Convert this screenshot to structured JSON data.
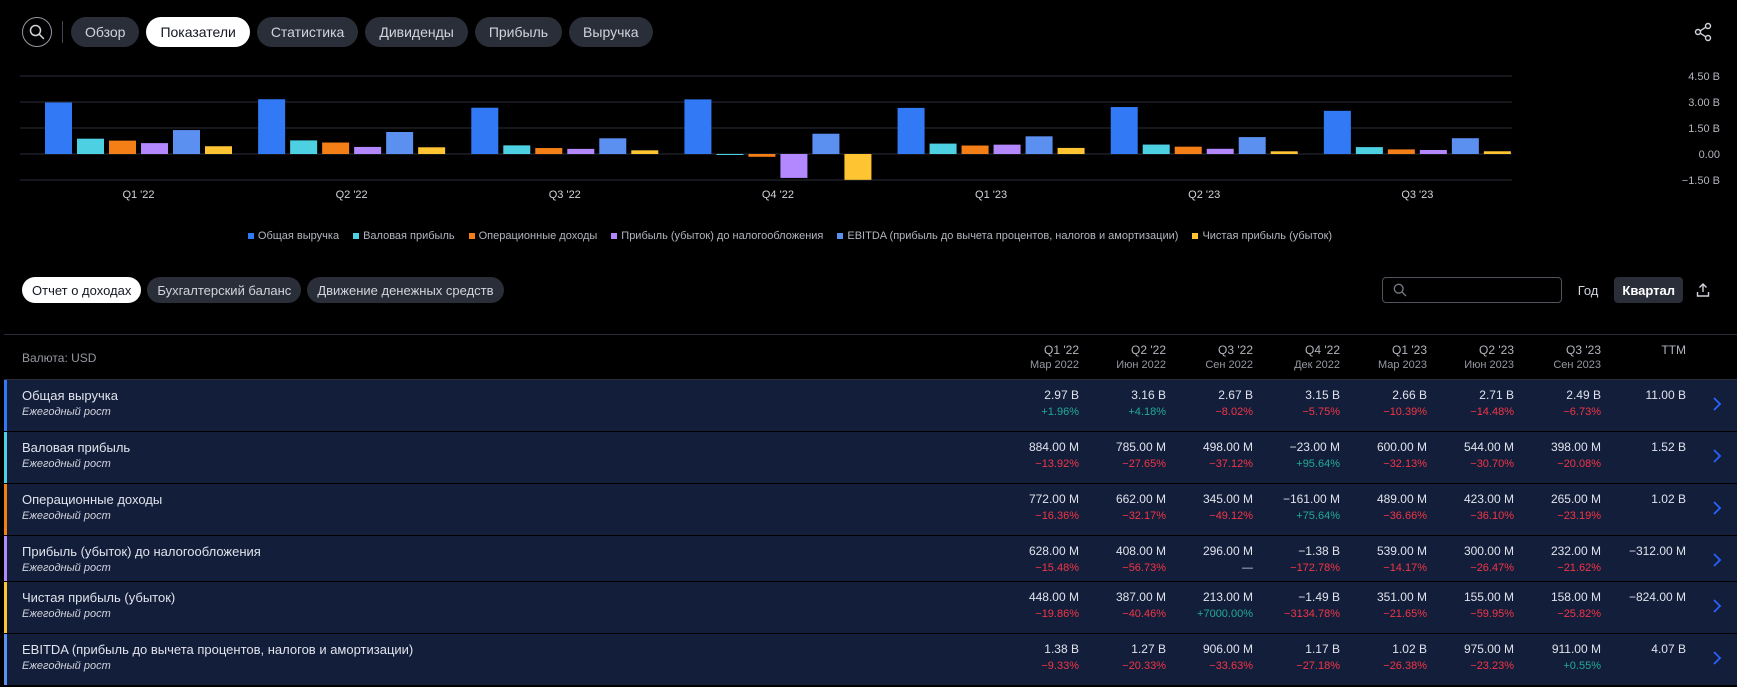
{
  "nav": {
    "tabs": [
      "Обзор",
      "Показатели",
      "Статистика",
      "Дивиденды",
      "Прибыль",
      "Выручка"
    ],
    "active_tab": "Показатели"
  },
  "colors": {
    "revenue": "#3179f5",
    "gross": "#4dd0e1",
    "operating": "#f57f17",
    "pretax": "#b388ff",
    "ebitda": "#5b8ff0",
    "net": "#ffc431",
    "negative": "#f23645",
    "positive": "#22ab94"
  },
  "chart_data": {
    "type": "bar",
    "categories": [
      "Q1 '22",
      "Q2 '22",
      "Q3 '22",
      "Q4 '22",
      "Q1 '23",
      "Q2 '23",
      "Q3 '23"
    ],
    "series": [
      {
        "name": "Общая выручка",
        "values": [
          2.97,
          3.16,
          2.67,
          3.15,
          2.66,
          2.71,
          2.49
        ]
      },
      {
        "name": "Валовая прибыль",
        "values": [
          0.884,
          0.785,
          0.498,
          -0.023,
          0.6,
          0.544,
          0.398
        ]
      },
      {
        "name": "Операционные доходы",
        "values": [
          0.772,
          0.662,
          0.345,
          -0.161,
          0.489,
          0.423,
          0.265
        ]
      },
      {
        "name": "Прибыль (убыток) до налогообложения",
        "values": [
          0.628,
          0.408,
          0.296,
          -1.38,
          0.539,
          0.3,
          0.232
        ]
      },
      {
        "name": "EBITDA (прибыль до вычета процентов, налогов и амортизации)",
        "values": [
          1.38,
          1.27,
          0.906,
          1.17,
          1.02,
          0.975,
          0.911
        ]
      },
      {
        "name": "Чистая прибыль (убыток)",
        "values": [
          0.448,
          0.387,
          0.213,
          -1.49,
          0.351,
          0.155,
          0.158
        ]
      }
    ],
    "y_ticks": [
      "4.50 B",
      "3.00 B",
      "1.50 B",
      "0.00",
      "−1.50 B"
    ],
    "y_tick_values": [
      4.5,
      3.0,
      1.5,
      0.0,
      -1.5
    ],
    "ylim": [
      -1.5,
      4.5
    ],
    "grid": true,
    "legend_position": "bottom"
  },
  "subtabs": [
    "Отчет о доходах",
    "Бухгалтерский баланс",
    "Движение денежных средств"
  ],
  "active_subtab": "Отчет о доходах",
  "search": {
    "placeholder": ""
  },
  "period": {
    "year": "Год",
    "quarter": "Квартал"
  },
  "table": {
    "currency": "Валюта: USD",
    "columns": [
      {
        "q": "Q1 '22",
        "d": "Мар 2022"
      },
      {
        "q": "Q2 '22",
        "d": "Июн 2022"
      },
      {
        "q": "Q3 '22",
        "d": "Сен 2022"
      },
      {
        "q": "Q4 '22",
        "d": "Дек 2022"
      },
      {
        "q": "Q1 '23",
        "d": "Мар 2023"
      },
      {
        "q": "Q2 '23",
        "d": "Июн 2023"
      },
      {
        "q": "Q3 '23",
        "d": "Сен 2023"
      },
      {
        "q": "TTM",
        "d": ""
      }
    ],
    "rows": [
      {
        "title": "Общая выручка",
        "sub": "Ежегодный рост",
        "color": "revenue",
        "values": [
          "2.97 B",
          "3.16 B",
          "2.67 B",
          "3.15 B",
          "2.66 B",
          "2.71 B",
          "2.49 B",
          "11.00 B"
        ],
        "growth": [
          "+1.96%",
          "+4.18%",
          "−8.02%",
          "−5.75%",
          "−10.39%",
          "−14.48%",
          "−6.73%",
          ""
        ]
      },
      {
        "title": "Валовая прибыль",
        "sub": "Ежегодный рост",
        "color": "gross",
        "values": [
          "884.00 M",
          "785.00 M",
          "498.00 M",
          "−23.00 M",
          "600.00 M",
          "544.00 M",
          "398.00 M",
          "1.52 B"
        ],
        "growth": [
          "−13.92%",
          "−27.65%",
          "−37.12%",
          "+95.64%",
          "−32.13%",
          "−30.70%",
          "−20.08%",
          ""
        ]
      },
      {
        "title": "Операционные доходы",
        "sub": "Ежегодный рост",
        "color": "operating",
        "values": [
          "772.00 M",
          "662.00 M",
          "345.00 M",
          "−161.00 M",
          "489.00 M",
          "423.00 M",
          "265.00 M",
          "1.02 B"
        ],
        "growth": [
          "−16.36%",
          "−32.17%",
          "−49.12%",
          "+75.64%",
          "−36.66%",
          "−36.10%",
          "−23.19%",
          ""
        ]
      },
      {
        "title": "Прибыль (убыток) до налогообложения",
        "sub": "Ежегодный рост",
        "color": "pretax",
        "values": [
          "628.00 M",
          "408.00 M",
          "296.00 M",
          "−1.38 B",
          "539.00 M",
          "300.00 M",
          "232.00 M",
          "−312.00 M"
        ],
        "growth": [
          "−15.48%",
          "−56.73%",
          "—",
          "−172.78%",
          "−14.17%",
          "−26.47%",
          "−21.62%",
          ""
        ]
      },
      {
        "title": "Чистая прибыль (убыток)",
        "sub": "Ежегодный рост",
        "color": "net",
        "values": [
          "448.00 M",
          "387.00 M",
          "213.00 M",
          "−1.49 B",
          "351.00 M",
          "155.00 M",
          "158.00 M",
          "−824.00 M"
        ],
        "growth": [
          "−19.86%",
          "−40.46%",
          "+7000.00%",
          "−3134.78%",
          "−21.65%",
          "−59.95%",
          "−25.82%",
          ""
        ]
      },
      {
        "title": "EBITDA (прибыль до вычета процентов, налогов и амортизации)",
        "sub": "Ежегодный рост",
        "color": "ebitda",
        "values": [
          "1.38 B",
          "1.27 B",
          "906.00 M",
          "1.17 B",
          "1.02 B",
          "975.00 M",
          "911.00 M",
          "4.07 B"
        ],
        "growth": [
          "−9.33%",
          "−20.33%",
          "−33.63%",
          "−27.18%",
          "−26.38%",
          "−23.23%",
          "+0.55%",
          ""
        ]
      }
    ]
  }
}
